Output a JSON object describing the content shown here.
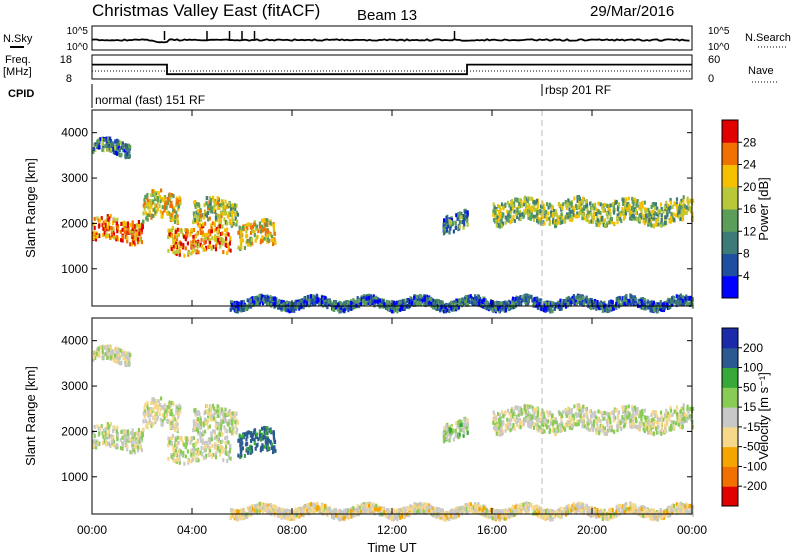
{
  "header": {
    "title": "Christmas Valley East (fitACF)",
    "beam": "Beam 13",
    "date": "29/Mar/2016"
  },
  "nsky_panel": {
    "left_label": "N.Sky",
    "right_label": "N.Search",
    "y_ticks_left": [
      "10^5",
      "10^0"
    ],
    "y_ticks_right": [
      "10^5",
      "10^0"
    ]
  },
  "freq_panel": {
    "left_label_1": "Freq.",
    "left_label_2": "[MHz]",
    "right_label": "Nave",
    "y_ticks_left": [
      "18",
      "8"
    ],
    "y_ticks_right": [
      "60",
      "0"
    ],
    "segments": [
      {
        "start_h": 0,
        "end_h": 3.0,
        "freq": 14
      },
      {
        "start_h": 3.0,
        "end_h": 15.0,
        "freq": 10
      },
      {
        "start_h": 15.0,
        "end_h": 24.0,
        "freq": 14
      }
    ]
  },
  "cpid": {
    "label": "CPID",
    "entries": [
      {
        "text": "normal (fast) 151 RF",
        "start_h": 0
      },
      {
        "text": "rbsp 201 RF",
        "start_h": 18.0
      }
    ]
  },
  "power_panel": {
    "ylabel": "Slant Range [km]",
    "colorbar_label": "Power [dB]",
    "colorbar_ticks": [
      "28",
      "24",
      "20",
      "16",
      "12",
      "8",
      "4"
    ]
  },
  "velocity_panel": {
    "ylabel": "Slant Range [km]",
    "colorbar_label": "Velocity [m s⁻¹]",
    "colorbar_ticks": [
      "200",
      "100",
      "50",
      "15",
      "-15",
      "-50",
      "-100",
      "-200"
    ]
  },
  "chart_data": {
    "type": "heatmap",
    "xlabel": "Time UT",
    "x_ticks": [
      "00:00",
      "04:00",
      "08:00",
      "12:00",
      "16:00",
      "20:00",
      "00:00"
    ],
    "xlim_hours": [
      0,
      24
    ],
    "y_ticks": [
      "1000",
      "2000",
      "3000",
      "4000"
    ],
    "ylim_km": [
      180,
      4500
    ],
    "scatter_regions": [
      {
        "start_h": 0.0,
        "end_h": 2.0,
        "center_km": 1900,
        "half_width_km": 250,
        "power_db": 26,
        "velocity": 5
      },
      {
        "start_h": 2.0,
        "end_h": 3.5,
        "center_km": 2400,
        "half_width_km": 300,
        "power_db": 20,
        "velocity": -10
      },
      {
        "start_h": 3.0,
        "end_h": 5.5,
        "center_km": 1700,
        "half_width_km": 300,
        "power_db": 24,
        "velocity": 0
      },
      {
        "start_h": 4.0,
        "end_h": 5.8,
        "center_km": 2300,
        "half_width_km": 250,
        "power_db": 18,
        "velocity": 5
      },
      {
        "start_h": 5.8,
        "end_h": 7.3,
        "center_km": 1800,
        "half_width_km": 250,
        "power_db": 20,
        "velocity": 120
      },
      {
        "start_h": 0.0,
        "end_h": 1.5,
        "center_km": 3700,
        "half_width_km": 150,
        "power_db": 10,
        "velocity": -5
      },
      {
        "start_h": 16.0,
        "end_h": 24.0,
        "center_km": 2300,
        "half_width_km": 250,
        "power_db": 16,
        "velocity": 0
      },
      {
        "start_h": 14.0,
        "end_h": 15.0,
        "center_km": 2100,
        "half_width_km": 200,
        "power_db": 10,
        "velocity": 20
      },
      {
        "start_h": 5.5,
        "end_h": 24.0,
        "center_km": 280,
        "half_width_km": 100,
        "power_db": 8,
        "velocity": -20
      }
    ]
  },
  "colors": {
    "power_scale": [
      "#0000ff",
      "#1f4fa0",
      "#3d7a78",
      "#5a9e5a",
      "#b8c838",
      "#f5c000",
      "#f07000",
      "#e00000"
    ],
    "velocity_scale": [
      "#e00000",
      "#f07000",
      "#f5a500",
      "#f5d88a",
      "#c8c8c8",
      "#88cc55",
      "#38a838",
      "#2a5a90",
      "#1a2aa8"
    ]
  }
}
